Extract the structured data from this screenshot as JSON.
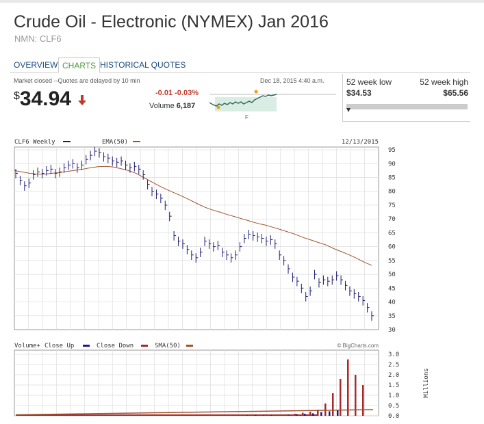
{
  "header": {
    "title": "Crude Oil - Electronic (NYMEX) Jan 2016",
    "symbol_line": "NMN: CLF6"
  },
  "tabs": [
    {
      "label": "OVERVIEW",
      "active": false
    },
    {
      "label": "CHARTS",
      "active": true
    },
    {
      "label": "HISTORICAL QUOTES",
      "active": false
    }
  ],
  "quote": {
    "market_status": "Market closed --Quotes are delayed by 10 min",
    "timestamp": "Dec 18, 2015 4:40 a.m.",
    "currency_symbol": "$",
    "price": "34.94",
    "change": "-0.01",
    "change_pct": "-0.03%",
    "volume_label": "Volume",
    "volume": "6,187",
    "spark_axis_label": "F",
    "direction_icon": "down-arrow-icon",
    "colors": {
      "down": "#c0392b",
      "spark_line": "#2d6b5a",
      "spark_fill": "#d9ede4",
      "spark_dot": "#f39c12"
    }
  },
  "range": {
    "low_label": "52 week low",
    "low_value": "$34.53",
    "high_label": "52 week high",
    "high_value": "$65.56",
    "position_fraction": 0.0
  },
  "chart": {
    "symbol_label": "CLF6 Weekly",
    "ema_label": "EMA(50)",
    "date_label": "12/13/2015",
    "watermark": "© BigCharts.com",
    "vol_legend": {
      "volume": "Volume+",
      "close_up": "Close Up",
      "close_down": "Close Down",
      "sma": "SMA(50)"
    },
    "vol_unit_label": "Millions",
    "colors": {
      "price": "#1a1a6e",
      "ema": "#a0522d",
      "vol_up": "#1a1a8e",
      "vol_down": "#a52a2a",
      "grid": "#dddddd"
    }
  },
  "chart_data": [
    {
      "type": "line",
      "title": "CLF6 Weekly",
      "ylim": [
        30,
        96
      ],
      "yticks": [
        35,
        40,
        45,
        50,
        55,
        60,
        65,
        70,
        75,
        80,
        85,
        90,
        95
      ],
      "series": [
        {
          "name": "CLF6 Weekly",
          "values": [
            86.5,
            84,
            82,
            83,
            86,
            87,
            86.5,
            87.5,
            88,
            86.5,
            87,
            88.5,
            89.5,
            90,
            88.5,
            89.5,
            91.5,
            93,
            94.5,
            94,
            92.5,
            92,
            91,
            90.5,
            91,
            89.5,
            88.5,
            89,
            88,
            86,
            82.5,
            80,
            79,
            77.5,
            75,
            71,
            64,
            62,
            61,
            59,
            57,
            56,
            58,
            62,
            61,
            60,
            60.5,
            58,
            57,
            56,
            57,
            60,
            63,
            64.5,
            64,
            63.5,
            63,
            62,
            62.5,
            61,
            57,
            55,
            52,
            49,
            47.5,
            45,
            42,
            44,
            50,
            47,
            48,
            47.5,
            48,
            49.5,
            48,
            46,
            44,
            43,
            42,
            40.5,
            38,
            35
          ]
        },
        {
          "name": "EMA(50)",
          "values": [
            87.5,
            87,
            86.5,
            86.2,
            86.2,
            86.5,
            86.8,
            87.2,
            87.6,
            88,
            88.5,
            88.9,
            89,
            88.8,
            88.2,
            87.5,
            86.5,
            85,
            83.5,
            82,
            80.7,
            79.5,
            78.3,
            77,
            75.6,
            74.3,
            73.3,
            72.5,
            71.6,
            70.8,
            70,
            69.2,
            68.4,
            67.8,
            67,
            66.2,
            65.3,
            64.4,
            63.3,
            62.4,
            61.5,
            60.6,
            59.3,
            58.2,
            57.1,
            55.8,
            54.4,
            53.2
          ]
        }
      ]
    },
    {
      "type": "bar",
      "title": "Volume+",
      "ylim": [
        0,
        3.0
      ],
      "yticks": [
        0.0,
        0.5,
        1.0,
        1.5,
        2.0,
        2.5,
        3.0
      ],
      "ylabel": "Millions",
      "series": [
        {
          "name": "Close Up",
          "values": [
            0.02,
            0.03,
            0.02,
            0.04,
            0.05,
            0.07,
            0.08,
            0.1,
            0.12,
            0.18,
            0.22,
            0.28
          ]
        },
        {
          "name": "Close Down",
          "values": [
            0.02,
            0.03,
            0.04,
            0.05,
            0.07,
            0.1,
            0.15,
            0.2,
            0.3,
            0.6,
            1.1,
            1.8,
            2.75,
            2.0,
            1.5
          ]
        },
        {
          "name": "SMA(50)",
          "values": [
            0.05,
            0.1,
            0.15,
            0.2,
            0.25,
            0.3
          ]
        }
      ]
    }
  ]
}
